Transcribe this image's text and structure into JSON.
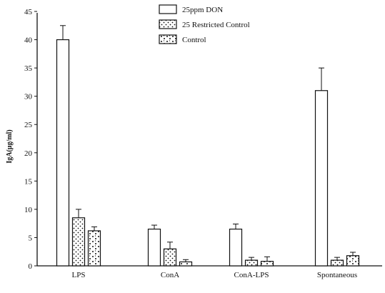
{
  "chart_data": {
    "type": "bar",
    "title": "",
    "xlabel": "",
    "ylabel": "IgA(μg/ml)",
    "ylim": [
      0,
      45
    ],
    "yticks": [
      0,
      5,
      10,
      15,
      20,
      25,
      30,
      35,
      40,
      45
    ],
    "grid": false,
    "legend_position": "top",
    "categories": [
      "LPS",
      "ConA",
      "ConA-LPS",
      "Spontaneous"
    ],
    "series": [
      {
        "name": "25ppm DON",
        "pattern": "empty",
        "values": [
          40,
          6.5,
          6.5,
          31
        ],
        "errors": [
          2.5,
          0.7,
          0.9,
          4
        ]
      },
      {
        "name": "25 Restricted Control",
        "pattern": "dots",
        "values": [
          8.5,
          3,
          1,
          1
        ],
        "errors": [
          1.5,
          1.2,
          0.5,
          0.5
        ]
      },
      {
        "name": "Control",
        "pattern": "speckle",
        "values": [
          6.2,
          0.7,
          0.8,
          1.8
        ],
        "errors": [
          0.7,
          0.4,
          0.8,
          0.6
        ]
      }
    ]
  },
  "colors": {
    "ink": "#111111",
    "bar_fill": "#ffffff"
  }
}
